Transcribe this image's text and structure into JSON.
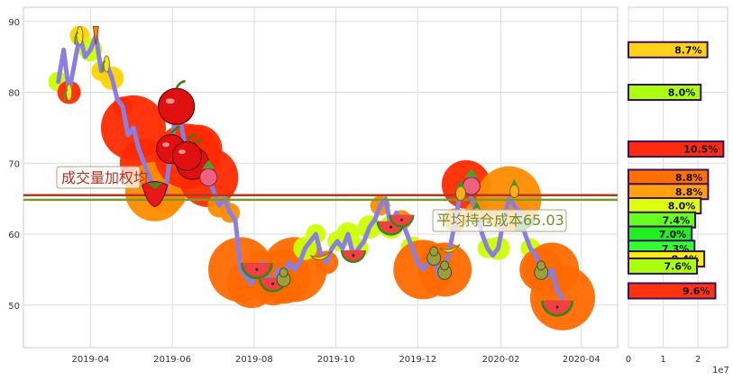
{
  "chart_data": [
    {
      "type": "line",
      "title": "",
      "xlabel": "",
      "ylabel": "",
      "x_ticks": [
        "2019-04",
        "2019-06",
        "2019-08",
        "2019-10",
        "2019-12",
        "2020-02",
        "2020-04"
      ],
      "x_range": [
        "2019-02-10",
        "2020-04-28"
      ],
      "y_ticks": [
        50,
        60,
        70,
        80,
        90
      ],
      "ylim": [
        44,
        92
      ],
      "grid": true,
      "series": [
        {
          "type": "line",
          "color": "#8a7fe0",
          "x": [
            "2019-03-08",
            "2019-03-12",
            "2019-03-16",
            "2019-03-20",
            "2019-03-24",
            "2019-03-28",
            "2019-04-01",
            "2019-04-05",
            "2019-04-09",
            "2019-04-13",
            "2019-04-17",
            "2019-04-21",
            "2019-04-25",
            "2019-04-29",
            "2019-05-03",
            "2019-05-07",
            "2019-05-11",
            "2019-05-15",
            "2019-05-19",
            "2019-05-23",
            "2019-05-27",
            "2019-05-31",
            "2019-06-04",
            "2019-06-08",
            "2019-06-12",
            "2019-06-16",
            "2019-06-20",
            "2019-06-24",
            "2019-06-28",
            "2019-07-02",
            "2019-07-06",
            "2019-07-10",
            "2019-07-14",
            "2019-07-18",
            "2019-07-22",
            "2019-07-26",
            "2019-07-30",
            "2019-08-03",
            "2019-08-07",
            "2019-08-11",
            "2019-08-15",
            "2019-08-19",
            "2019-08-23",
            "2019-08-27",
            "2019-08-31",
            "2019-09-04",
            "2019-09-08",
            "2019-09-12",
            "2019-09-16",
            "2019-09-20",
            "2019-09-24",
            "2019-09-28",
            "2019-10-02",
            "2019-10-06",
            "2019-10-10",
            "2019-10-14",
            "2019-10-18",
            "2019-10-22",
            "2019-10-26",
            "2019-10-30",
            "2019-11-03",
            "2019-11-07",
            "2019-11-11",
            "2019-11-15",
            "2019-11-19",
            "2019-11-23",
            "2019-11-27",
            "2019-12-01",
            "2019-12-05",
            "2019-12-09",
            "2019-12-13",
            "2019-12-17",
            "2019-12-21",
            "2019-12-25",
            "2019-12-29",
            "2020-01-02",
            "2020-01-06",
            "2020-01-10",
            "2020-01-14",
            "2020-01-18",
            "2020-01-22",
            "2020-01-26",
            "2020-01-30",
            "2020-02-03",
            "2020-02-07",
            "2020-02-11",
            "2020-02-15",
            "2020-02-19",
            "2020-02-23",
            "2020-02-27",
            "2020-03-02",
            "2020-03-06",
            "2020-03-10",
            "2020-03-14",
            "2020-03-18"
          ],
          "values": [
            81.5,
            86,
            80,
            84,
            88,
            85,
            86,
            88,
            83,
            84,
            82,
            79,
            78,
            74,
            75,
            72,
            70,
            68,
            66,
            65,
            66,
            72,
            78,
            75,
            71,
            70,
            72,
            69,
            68,
            66,
            64,
            65,
            63,
            62,
            55,
            54,
            53,
            55,
            56,
            54,
            53,
            55,
            54,
            56,
            55,
            56,
            58,
            59,
            60,
            57,
            56,
            58,
            59,
            58,
            60,
            57,
            58,
            59,
            61,
            62,
            64,
            65,
            61,
            63,
            62,
            60,
            58,
            56,
            55,
            56,
            57,
            54,
            55,
            58,
            62,
            66,
            67,
            65,
            63,
            60,
            58,
            57,
            58,
            62,
            65,
            64,
            63,
            60,
            58,
            57,
            55,
            54,
            55,
            52,
            51
          ]
        }
      ],
      "horizontal_lines": [
        {
          "value": 65.3,
          "color": "#b23a1e"
        },
        {
          "value": 65.03,
          "color": "#7a9a2a"
        }
      ],
      "annotations": [
        {
          "text": "成交量加权均",
          "color": "#b5301e"
        },
        {
          "text": "平均持仓成本65.03",
          "color": "#6f8f2a"
        }
      ]
    },
    {
      "type": "bar",
      "orientation": "horizontal",
      "x_ticks": [
        "0",
        "1",
        "2"
      ],
      "x_scale_label": "1e7",
      "xlim": [
        0,
        2.85
      ],
      "bars": [
        {
          "y": 86,
          "value": 2.27,
          "label": "8.7%",
          "color": "#ffd21a"
        },
        {
          "y": 80,
          "value": 2.08,
          "label": "8.0%",
          "color": "#aaff10"
        },
        {
          "y": 72,
          "value": 2.73,
          "label": "10.5%",
          "color": "#ff2a10"
        },
        {
          "y": 68,
          "value": 2.29,
          "label": "8.8%",
          "color": "#ff7000"
        },
        {
          "y": 66,
          "value": 2.29,
          "label": "8.8%",
          "color": "#ffa010"
        },
        {
          "y": 64,
          "value": 2.08,
          "label": "8.0%",
          "color": "#ddff10"
        },
        {
          "y": 62,
          "value": 1.92,
          "label": "7.4%",
          "color": "#66ff20"
        },
        {
          "y": 60,
          "value": 1.82,
          "label": "7.0%",
          "color": "#22ee22"
        },
        {
          "y": 58,
          "value": 1.9,
          "label": "7.3%",
          "color": "#33ff33"
        },
        {
          "y": 56.5,
          "value": 2.18,
          "label": "8.4%",
          "color": "#ffee10"
        },
        {
          "y": 55.5,
          "value": 1.97,
          "label": "7.6%",
          "color": "#aaff10"
        },
        {
          "y": 52,
          "value": 2.5,
          "label": "9.6%",
          "color": "#ff3310"
        }
      ]
    }
  ],
  "icons": {
    "marker_icons": [
      "apple-icon",
      "strawberry-icon",
      "watermelon-icon",
      "pear-icon",
      "banana-icon",
      "pineapple-icon",
      "radish-icon",
      "carrot-icon",
      "corn-icon",
      "peapod-icon"
    ]
  }
}
